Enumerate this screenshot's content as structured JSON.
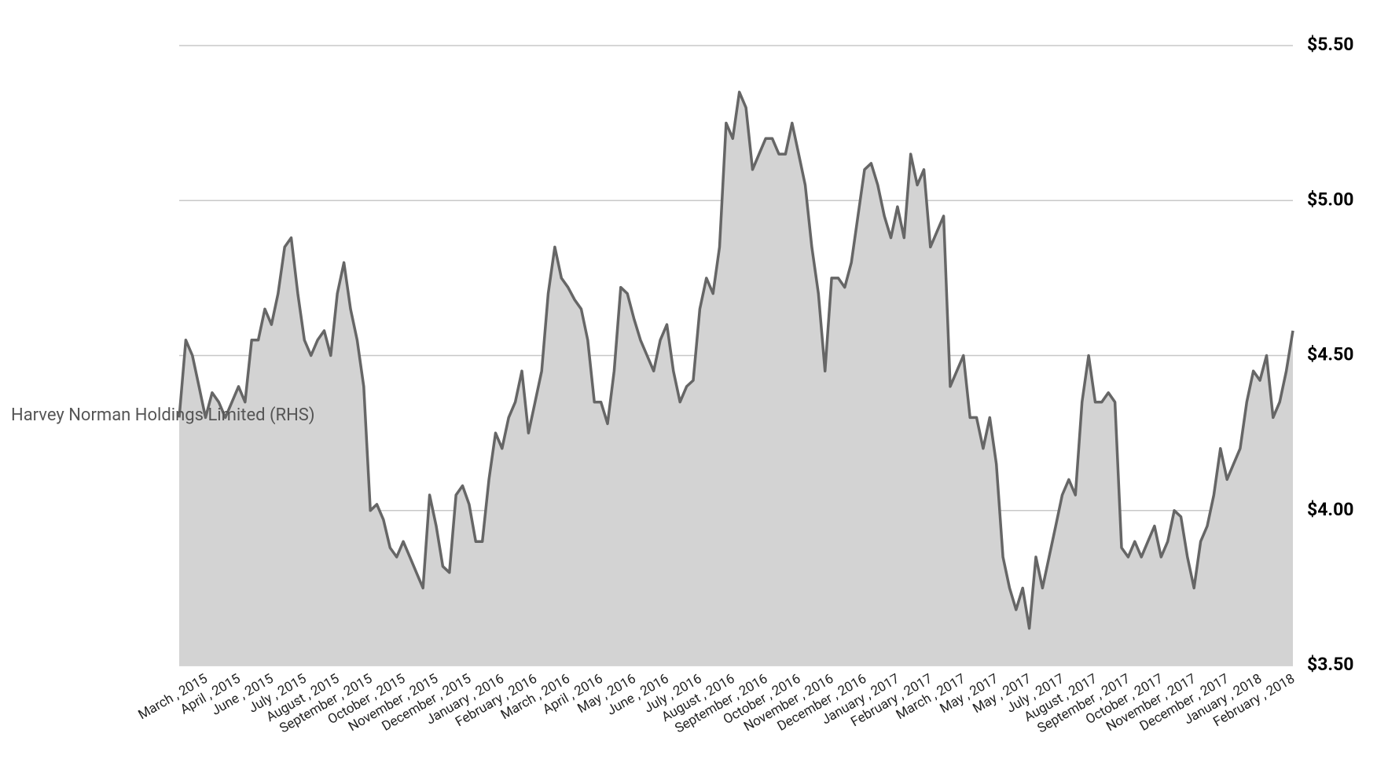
{
  "chart_data": {
    "type": "area",
    "yaxis_side": "right",
    "grid": true,
    "ylim": [
      3.5,
      5.5
    ],
    "yticks": [
      {
        "value": 3.5,
        "label": "$3.50"
      },
      {
        "value": 4.0,
        "label": "$4.00"
      },
      {
        "value": 4.5,
        "label": "$4.50"
      },
      {
        "value": 5.0,
        "label": "$5.00"
      },
      {
        "value": 5.5,
        "label": "$5.50"
      }
    ],
    "categories": [
      null,
      null,
      "March , 2015",
      null,
      null,
      null,
      null,
      "April , 2015",
      null,
      null,
      null,
      null,
      "June , 2015",
      null,
      null,
      null,
      null,
      "July , 2015",
      null,
      null,
      null,
      null,
      "August , 2015",
      null,
      null,
      null,
      null,
      "September , 2015",
      null,
      null,
      null,
      null,
      "October , 2015",
      null,
      null,
      null,
      null,
      "November , 2015",
      null,
      null,
      null,
      null,
      "December , 2015",
      null,
      null,
      null,
      null,
      "January , 2016",
      null,
      null,
      null,
      null,
      "February , 2016",
      null,
      null,
      null,
      null,
      "March , 2016",
      null,
      null,
      null,
      null,
      "April , 2016",
      null,
      null,
      null,
      null,
      "May , 2016",
      null,
      null,
      null,
      null,
      "June , 2016",
      null,
      null,
      null,
      null,
      "July , 2016",
      null,
      null,
      null,
      null,
      "August , 2016",
      null,
      null,
      null,
      null,
      "September , 2016",
      null,
      null,
      null,
      null,
      "October , 2016",
      null,
      null,
      null,
      null,
      "November , 2016",
      null,
      null,
      null,
      null,
      "December , 2016",
      null,
      null,
      null,
      null,
      "January , 2017",
      null,
      null,
      null,
      null,
      "February , 2017",
      null,
      null,
      null,
      null,
      "March , 2017",
      null,
      null,
      null,
      null,
      "May , 2017",
      null,
      null,
      null,
      null,
      "May , 2017",
      null,
      null,
      null,
      null,
      "July , 2017",
      null,
      null,
      null,
      null,
      "August , 2017",
      null,
      null,
      null,
      null,
      "September , 2017",
      null,
      null,
      null,
      null,
      "October , 2017",
      null,
      null,
      null,
      null,
      "November , 2017",
      null,
      null,
      null,
      null,
      "December , 2017",
      null,
      null,
      null,
      null,
      "January , 2018",
      null,
      null,
      null,
      null,
      "February , 2018",
      null,
      null
    ],
    "series": [
      {
        "name": "Harvey Norman Holdings Limited (RHS)",
        "color": "#666666",
        "fill": "#d3d3d3",
        "values": [
          4.3,
          4.55,
          4.5,
          4.4,
          4.3,
          4.38,
          4.35,
          4.3,
          4.35,
          4.4,
          4.35,
          4.55,
          4.55,
          4.65,
          4.6,
          4.7,
          4.85,
          4.88,
          4.7,
          4.55,
          4.5,
          4.55,
          4.58,
          4.5,
          4.7,
          4.8,
          4.65,
          4.55,
          4.4,
          4.0,
          4.02,
          3.97,
          3.88,
          3.85,
          3.9,
          3.85,
          3.8,
          3.75,
          4.05,
          3.95,
          3.82,
          3.8,
          4.05,
          4.08,
          4.02,
          3.9,
          3.9,
          4.1,
          4.25,
          4.2,
          4.3,
          4.35,
          4.45,
          4.25,
          4.35,
          4.45,
          4.7,
          4.85,
          4.75,
          4.72,
          4.68,
          4.65,
          4.55,
          4.35,
          4.35,
          4.28,
          4.45,
          4.72,
          4.7,
          4.62,
          4.55,
          4.5,
          4.45,
          4.55,
          4.6,
          4.45,
          4.35,
          4.4,
          4.42,
          4.65,
          4.75,
          4.7,
          4.85,
          5.25,
          5.2,
          5.35,
          5.3,
          5.1,
          5.15,
          5.2,
          5.2,
          5.15,
          5.15,
          5.25,
          5.15,
          5.05,
          4.85,
          4.7,
          4.45,
          4.75,
          4.75,
          4.72,
          4.8,
          4.95,
          5.1,
          5.12,
          5.05,
          4.95,
          4.88,
          4.98,
          4.88,
          5.15,
          5.05,
          5.1,
          4.85,
          4.9,
          4.95,
          4.4,
          4.45,
          4.5,
          4.3,
          4.3,
          4.2,
          4.3,
          4.15,
          3.85,
          3.75,
          3.68,
          3.75,
          3.62,
          3.85,
          3.75,
          3.85,
          3.95,
          4.05,
          4.1,
          4.05,
          4.35,
          4.5,
          4.35,
          4.35,
          4.38,
          4.35,
          3.88,
          3.85,
          3.9,
          3.85,
          3.9,
          3.95,
          3.85,
          3.9,
          4.0,
          3.98,
          3.85,
          3.75,
          3.9,
          3.95,
          4.05,
          4.2,
          4.1,
          4.15,
          4.2,
          4.35,
          4.45,
          4.42,
          4.5,
          4.3,
          4.35,
          4.45,
          4.58
        ]
      }
    ]
  }
}
